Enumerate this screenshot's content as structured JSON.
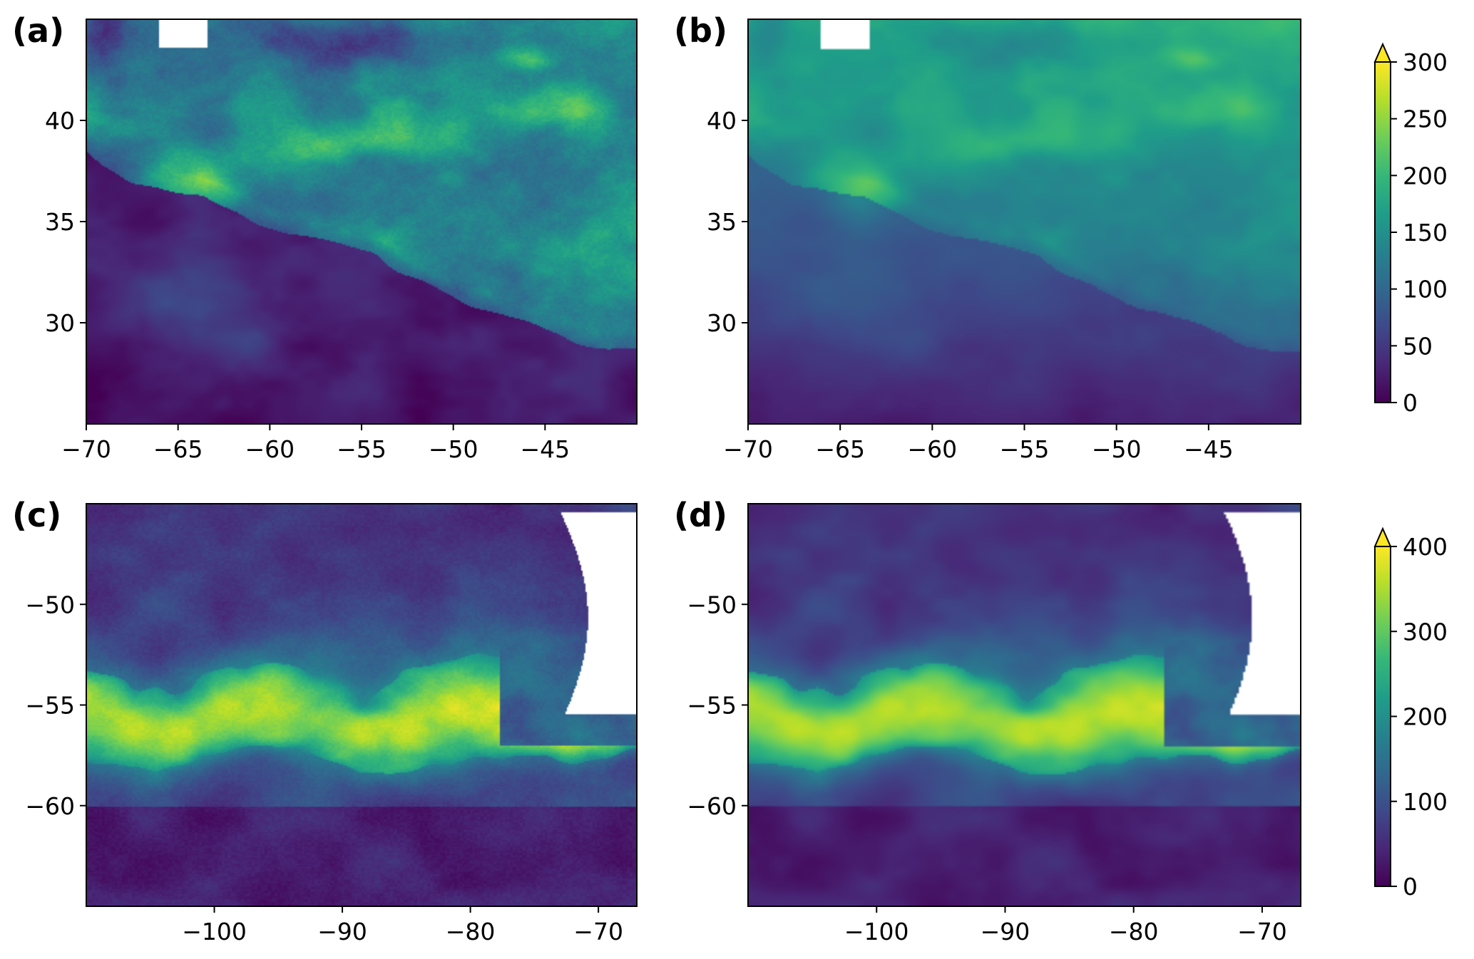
{
  "colors": {
    "viridis": [
      "#440154",
      "#482777",
      "#3e4989",
      "#31688e",
      "#26828e",
      "#1f9e89",
      "#35b779",
      "#6ece58",
      "#b5de2b",
      "#fde725"
    ],
    "land": "#ffffff",
    "frame": "#000000"
  },
  "chart_data": [
    {
      "type": "heatmap",
      "label": "(a)",
      "xlim": [
        -70,
        -40
      ],
      "ylim": [
        25,
        45
      ],
      "xticks": [
        -70,
        -65,
        -60,
        -55,
        -50,
        -45
      ],
      "yticks": [
        30,
        35,
        40
      ],
      "xtick_labels": [
        "−70",
        "−65",
        "−60",
        "−55",
        "−50",
        "−45"
      ],
      "ytick_labels": [
        "30",
        "35",
        "40"
      ],
      "colorbar": "cb_top",
      "field": "north_atlantic",
      "texture": "sharp",
      "grid": false
    },
    {
      "type": "heatmap",
      "label": "(b)",
      "xlim": [
        -70,
        -40
      ],
      "ylim": [
        25,
        45
      ],
      "xticks": [
        -70,
        -65,
        -60,
        -55,
        -50,
        -45
      ],
      "yticks": [
        30,
        35,
        40
      ],
      "xtick_labels": [
        "−70",
        "−65",
        "−60",
        "−55",
        "−50",
        "−45"
      ],
      "ytick_labels": [
        "30",
        "35",
        "40"
      ],
      "colorbar": "cb_top",
      "field": "north_atlantic",
      "texture": "smooth",
      "grid": false
    },
    {
      "type": "heatmap",
      "label": "(c)",
      "xlim": [
        -110,
        -67
      ],
      "ylim": [
        -65,
        -45
      ],
      "xticks": [
        -100,
        -90,
        -80,
        -70
      ],
      "yticks": [
        -60,
        -55,
        -50
      ],
      "xtick_labels": [
        "−100",
        "−90",
        "−80",
        "−70"
      ],
      "ytick_labels": [
        "−60",
        "−55",
        "−50"
      ],
      "colorbar": "cb_bottom",
      "field": "southern_ocean",
      "texture": "sharp",
      "grid": false
    },
    {
      "type": "heatmap",
      "label": "(d)",
      "xlim": [
        -110,
        -67
      ],
      "ylim": [
        -65,
        -45
      ],
      "xticks": [
        -100,
        -90,
        -80,
        -70
      ],
      "yticks": [
        -60,
        -55,
        -50
      ],
      "xtick_labels": [
        "−100",
        "−90",
        "−80",
        "−70"
      ],
      "ytick_labels": [
        "−60",
        "−55",
        "−50"
      ],
      "colorbar": "cb_bottom",
      "field": "southern_ocean",
      "texture": "smooth",
      "grid": false
    }
  ],
  "colorbars": {
    "cb_top": {
      "range": [
        0,
        300
      ],
      "extend": "max",
      "ticks": [
        0,
        50,
        100,
        150,
        200,
        250,
        300
      ],
      "tick_labels": [
        "0",
        "50",
        "100",
        "150",
        "200",
        "250",
        "300"
      ]
    },
    "cb_bottom": {
      "range": [
        0,
        400
      ],
      "extend": "max",
      "ticks": [
        0,
        100,
        200,
        300,
        400
      ],
      "tick_labels": [
        "0",
        "100",
        "200",
        "300",
        "400"
      ]
    }
  }
}
